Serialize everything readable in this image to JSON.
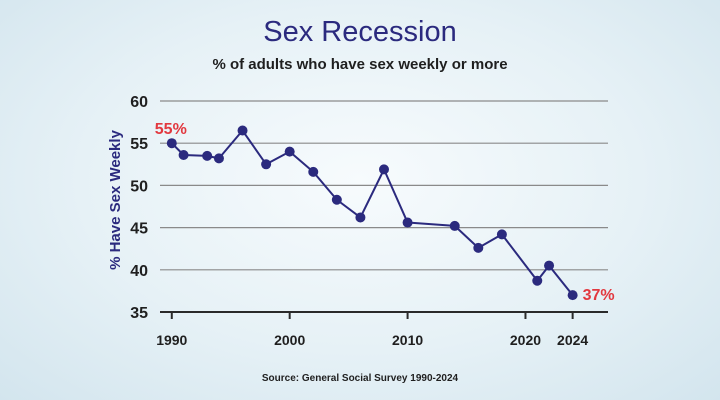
{
  "chart_data": {
    "type": "line",
    "title": "Sex Recession",
    "subtitle": "% of adults who have sex weekly or more",
    "ylabel": "% Have Sex Weekly",
    "xlabel": "",
    "source": "Source: General Social Survey 1990-2024",
    "xlim": [
      1989,
      2027
    ],
    "ylim": [
      35,
      60
    ],
    "yticks": [
      35,
      40,
      45,
      50,
      55,
      60
    ],
    "xticks": [
      1990,
      2000,
      2010,
      2020,
      2024
    ],
    "grid": true,
    "series": [
      {
        "color": "#2b2a7e",
        "points": [
          {
            "x": 1990,
            "y": 55
          },
          {
            "x": 1991,
            "y": 53.6
          },
          {
            "x": 1993,
            "y": 53.5
          },
          {
            "x": 1994,
            "y": 53.2
          },
          {
            "x": 1996,
            "y": 56.5
          },
          {
            "x": 1998,
            "y": 52.5
          },
          {
            "x": 2000,
            "y": 54
          },
          {
            "x": 2002,
            "y": 51.6
          },
          {
            "x": 2004,
            "y": 48.3
          },
          {
            "x": 2006,
            "y": 46.2
          },
          {
            "x": 2008,
            "y": 51.9
          },
          {
            "x": 2010,
            "y": 45.6
          },
          {
            "x": 2014,
            "y": 45.2
          },
          {
            "x": 2016,
            "y": 42.6
          },
          {
            "x": 2018,
            "y": 44.2
          },
          {
            "x": 2021,
            "y": 38.7
          },
          {
            "x": 2022,
            "y": 40.5
          },
          {
            "x": 2024,
            "y": 37
          }
        ]
      }
    ],
    "annotations": [
      {
        "x": 1990,
        "y": 55,
        "text": "55%",
        "color": "#e2383f"
      },
      {
        "x": 2024,
        "y": 37,
        "text": "37%",
        "color": "#e2383f"
      }
    ]
  }
}
